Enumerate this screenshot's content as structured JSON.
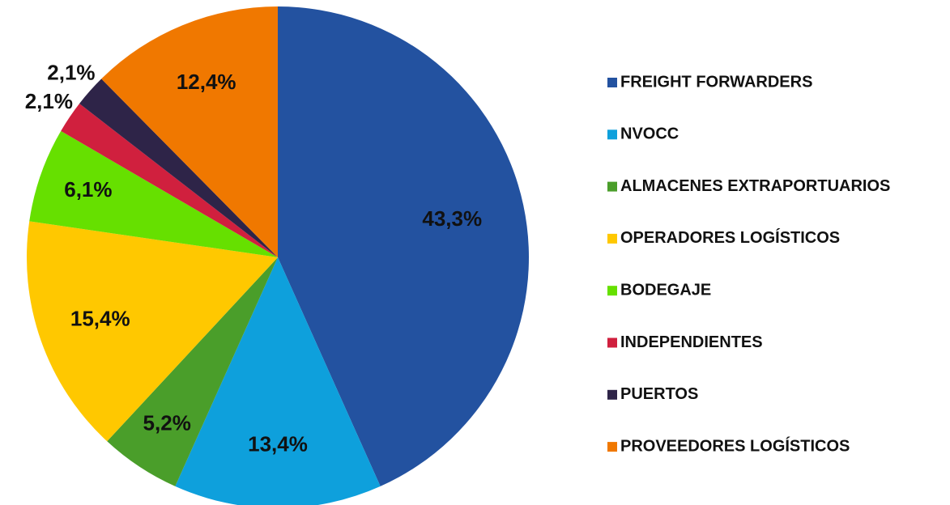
{
  "chart_data": {
    "type": "pie",
    "categories": [
      "FREIGHT FORWARDERS",
      "NVOCC",
      "ALMACENES EXTRAPORTUARIOS",
      "OPERADORES LOGÍSTICOS",
      "BODEGAJE",
      "INDEPENDIENTES",
      "PUERTOS",
      "PROVEEDORES LOGÍSTICOS"
    ],
    "values": [
      43.3,
      13.4,
      5.2,
      15.4,
      6.1,
      2.1,
      2.1,
      12.4
    ],
    "value_labels": [
      "43,3%",
      "13,4%",
      "5,2%",
      "15,4%",
      "6,1%",
      "2,1%",
      "2,1%",
      "12,4%"
    ],
    "colors": [
      "#2352a0",
      "#0ea0dc",
      "#4a9e2a",
      "#ffc800",
      "#66e000",
      "#d0203e",
      "#2e2448",
      "#f07800"
    ],
    "legend": "right"
  }
}
